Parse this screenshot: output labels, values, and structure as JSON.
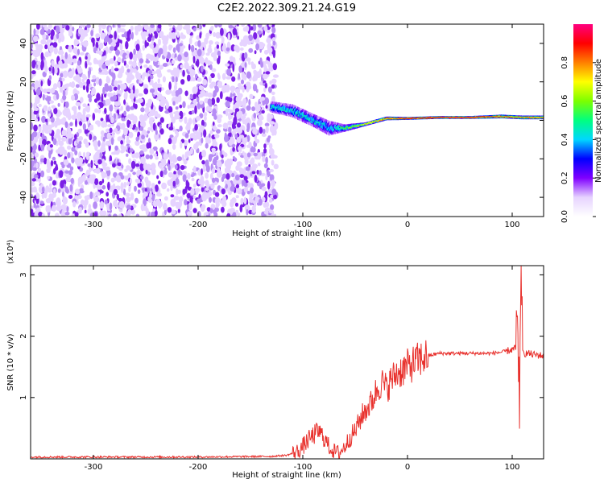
{
  "figure_title": "C2E2.2022.309.21.24.G19",
  "chart_data": [
    {
      "type": "heatmap",
      "title": "",
      "xlabel": "Height of straight line (km)",
      "ylabel": "Frequency (Hz)",
      "xlim": [
        -360,
        130
      ],
      "ylim": [
        -50,
        50
      ],
      "x_ticks": [
        -300,
        -200,
        -100,
        0,
        100
      ],
      "x_tick_labels": [
        "-300",
        "-200",
        "-100",
        "0",
        "100"
      ],
      "y_ticks": [
        -40,
        -20,
        0,
        20,
        40
      ],
      "y_tick_labels": [
        "-40",
        "-20",
        "0",
        "20",
        "40"
      ],
      "grid": false,
      "noise_region_x": [
        -360,
        -130
      ],
      "noise_amplitude": 0.12,
      "signal_track": [
        {
          "x": -130,
          "y": 7,
          "width": 6,
          "amplitude": 0.45
        },
        {
          "x": -110,
          "y": 5,
          "width": 7,
          "amplitude": 0.45
        },
        {
          "x": -90,
          "y": 0,
          "width": 7,
          "amplitude": 0.45
        },
        {
          "x": -75,
          "y": -4,
          "width": 8,
          "amplitude": 0.4
        },
        {
          "x": -60,
          "y": -4,
          "width": 4,
          "amplitude": 0.55
        },
        {
          "x": -40,
          "y": -2,
          "width": 2,
          "amplitude": 0.7
        },
        {
          "x": -20,
          "y": 1,
          "width": 2,
          "amplitude": 0.8
        },
        {
          "x": 0,
          "y": 1,
          "width": 1.5,
          "amplitude": 0.9
        },
        {
          "x": 30,
          "y": 1.5,
          "width": 1.5,
          "amplitude": 0.9
        },
        {
          "x": 60,
          "y": 1.5,
          "width": 1.5,
          "amplitude": 0.9
        },
        {
          "x": 90,
          "y": 2,
          "width": 2,
          "amplitude": 0.85
        },
        {
          "x": 110,
          "y": 1.5,
          "width": 2,
          "amplitude": 0.8
        },
        {
          "x": 130,
          "y": 1.5,
          "width": 2,
          "amplitude": 0.8
        }
      ],
      "colorbar": {
        "label": "Normalized spectral amplitude",
        "range": [
          0,
          1
        ],
        "ticks": [
          0.0,
          0.2,
          0.4,
          0.6,
          0.8
        ],
        "tick_labels": [
          "0.0",
          "0.2",
          "0.4",
          "0.6",
          "0.8"
        ],
        "colors": [
          "#ffffff",
          "#e6d3ff",
          "#8000ff",
          "#0000ff",
          "#00d7ff",
          "#00ff80",
          "#7cff00",
          "#ffff00",
          "#ff8000",
          "#ff0000",
          "#ff0080"
        ]
      }
    },
    {
      "type": "line",
      "title": "",
      "xlabel": "Height of straight line (km)",
      "ylabel": "SNR (10 * v/v)",
      "y_multiplier_label": "(x10⁴)",
      "xlim": [
        -360,
        130
      ],
      "ylim": [
        0,
        3.15
      ],
      "x_ticks": [
        -300,
        -200,
        -100,
        0,
        100
      ],
      "x_tick_labels": [
        "-300",
        "-200",
        "-100",
        "0",
        "100"
      ],
      "y_ticks": [
        1,
        2,
        3
      ],
      "y_tick_labels": [
        "1",
        "2",
        "3"
      ],
      "grid": false,
      "series": [
        {
          "color": "#e8312d",
          "x": [
            -360,
            -300,
            -200,
            -130,
            -115,
            -105,
            -100,
            -95,
            -90,
            -85,
            -80,
            -75,
            -70,
            -65,
            -60,
            -55,
            -50,
            -45,
            -40,
            -35,
            -30,
            -25,
            -20,
            -15,
            -10,
            -5,
            0,
            5,
            10,
            15,
            20,
            25,
            30,
            40,
            50,
            60,
            70,
            80,
            90,
            95,
            100,
            103,
            105,
            107,
            108,
            110,
            115,
            120,
            130
          ],
          "y": [
            0.03,
            0.03,
            0.03,
            0.04,
            0.06,
            0.12,
            0.2,
            0.3,
            0.38,
            0.45,
            0.35,
            0.2,
            0.12,
            0.1,
            0.2,
            0.35,
            0.45,
            0.65,
            0.8,
            0.9,
            1.1,
            1.25,
            1.15,
            1.3,
            1.4,
            1.45,
            1.5,
            1.55,
            1.6,
            1.65,
            1.68,
            1.7,
            1.72,
            1.72,
            1.72,
            1.72,
            1.72,
            1.72,
            1.74,
            1.76,
            1.78,
            1.8,
            2.2,
            1.0,
            3.1,
            1.72,
            1.72,
            1.7,
            1.68
          ]
        }
      ]
    }
  ]
}
